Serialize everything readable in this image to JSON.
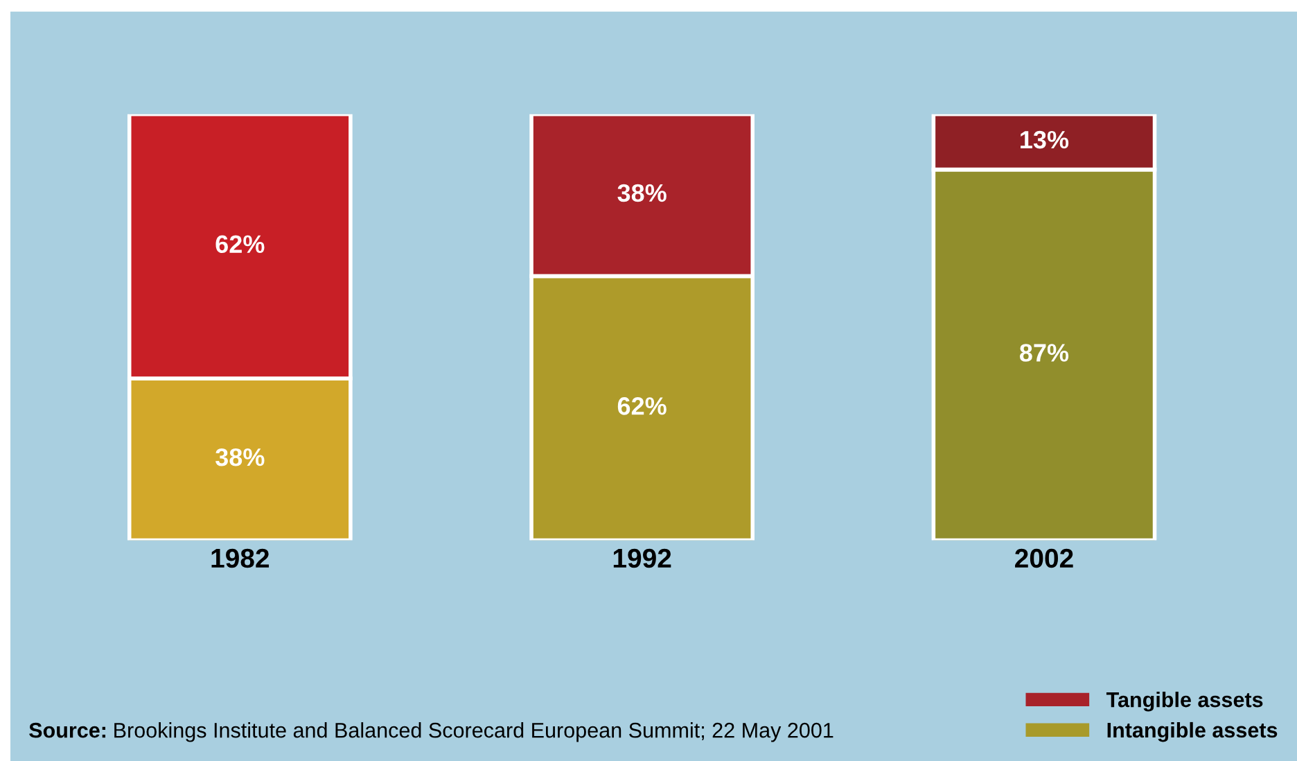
{
  "chart_data": {
    "type": "bar",
    "stacked": true,
    "categories": [
      "1982",
      "1992",
      "2002"
    ],
    "series": [
      {
        "name": "Intangible assets",
        "color": "#a89a2a",
        "colors": [
          "#d2a82a",
          "#ae9b2a",
          "#918e2c"
        ],
        "values": [
          38,
          62,
          87
        ],
        "value_labels": [
          "38%",
          "62%",
          "87%"
        ]
      },
      {
        "name": "Tangible assets",
        "color": "#a8222a",
        "colors": [
          "#c81f26",
          "#a9232a",
          "#8f2025"
        ],
        "values": [
          62,
          38,
          13
        ],
        "value_labels": [
          "62%",
          "38%",
          "13%"
        ]
      }
    ],
    "legend": "bottom right",
    "annotations": [
      "Source: Brookings Institute and Balanced Scorecard European Summit; 22 May 2001"
    ]
  }
}
